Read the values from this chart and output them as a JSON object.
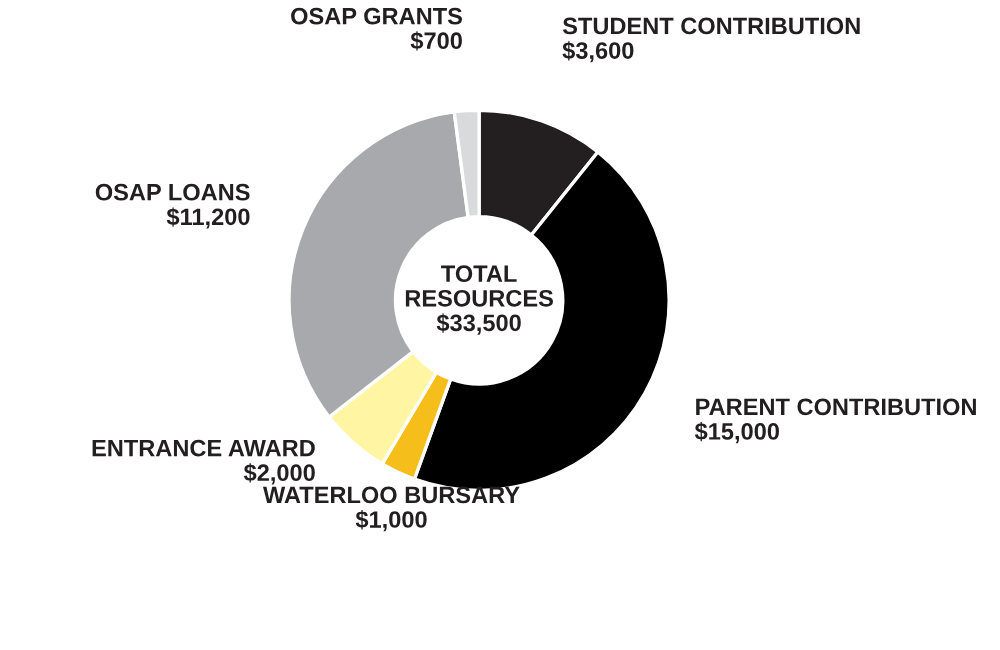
{
  "chart_data": {
    "type": "donut",
    "categories": [
      "STUDENT CONTRIBUTION",
      "PARENT CONTRIBUTION",
      "WATERLOO BURSARY",
      "ENTRANCE AWARD",
      "OSAP LOANS",
      "OSAP GRANTS"
    ],
    "values": [
      3600,
      15000,
      1000,
      2000,
      11200,
      700
    ],
    "value_labels": [
      "$3,600",
      "$15,000",
      "$1,000",
      "$2,000",
      "$11,200",
      "$700"
    ],
    "colors": [
      "#231f20",
      "#000000",
      "#f6be1a",
      "#fff5a3",
      "#a7a9ac",
      "#d9dadb"
    ],
    "annotations": [
      "TOTAL\nRESOURCES\n$33,500"
    ],
    "legend": false
  }
}
